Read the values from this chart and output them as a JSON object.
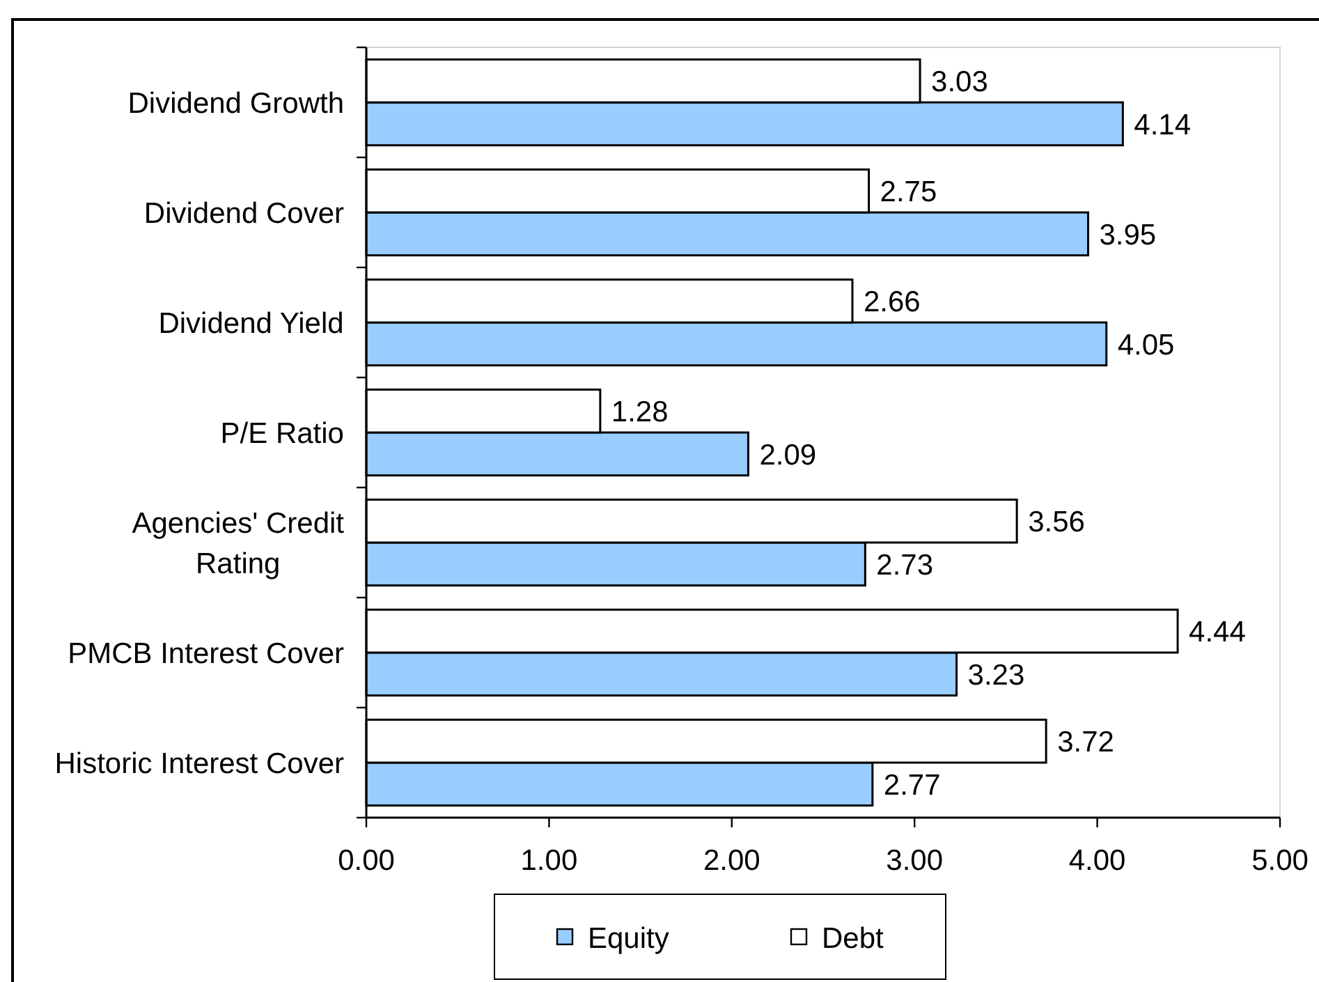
{
  "chart_data": {
    "type": "bar",
    "orientation": "horizontal",
    "categories": [
      "Dividend Growth",
      "Dividend Cover",
      "Dividend Yield",
      "P/E Ratio",
      "Agencies' Credit Rating",
      "PMCB Interest Cover",
      "Historic Interest Cover"
    ],
    "series": [
      {
        "name": "Equity",
        "color": "#99ccff",
        "values": [
          4.14,
          3.95,
          4.05,
          2.09,
          2.73,
          3.23,
          2.77
        ]
      },
      {
        "name": "Debt",
        "color": "#ffffff",
        "values": [
          3.03,
          2.75,
          2.66,
          1.28,
          3.56,
          4.44,
          3.72
        ]
      }
    ],
    "xlim": [
      0,
      5
    ],
    "xticks": [
      {
        "value": 0,
        "label": "0.00"
      },
      {
        "value": 1,
        "label": "1.00"
      },
      {
        "value": 2,
        "label": "2.00"
      },
      {
        "value": 3,
        "label": "3.00"
      },
      {
        "value": 4,
        "label": "4.00"
      },
      {
        "value": 5,
        "label": "5.00"
      }
    ],
    "data_labels": true,
    "legend": "bottom"
  }
}
